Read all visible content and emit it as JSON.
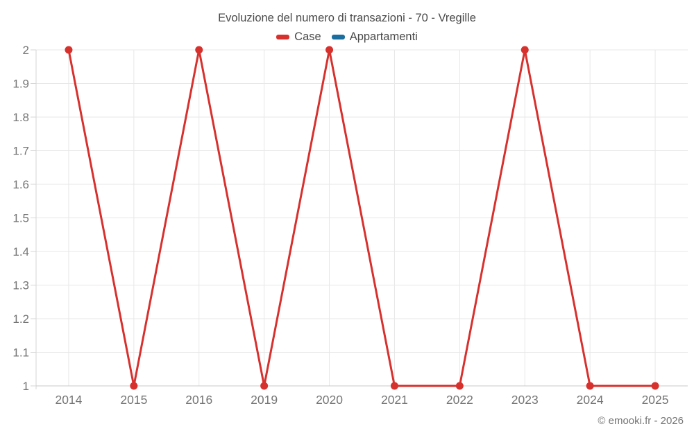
{
  "title": "Evoluzione del numero di transazioni - 70 - Vregille",
  "legend": {
    "items": [
      {
        "label": "Case",
        "color": "#d7312e"
      },
      {
        "label": "Appartamenti",
        "color": "#1a6fa0"
      }
    ]
  },
  "watermark": "© emooki.fr - 2026",
  "colors": {
    "grid": "#e7e7e7",
    "y_axis": "#d6d6d6",
    "x_axis": "#c9c9c9",
    "tick_label": "#757575",
    "title_text": "#4a4a4a",
    "watermark_text": "#757575",
    "background": "#ffffff"
  },
  "chart_data": {
    "type": "line",
    "title": "Evoluzione del numero di transazioni - 70 - Vregille",
    "categories": [
      "2014",
      "2015",
      "2016",
      "2019",
      "2020",
      "2021",
      "2022",
      "2023",
      "2024",
      "2025"
    ],
    "series": [
      {
        "name": "Case",
        "color": "#d7312e",
        "values": [
          2,
          1,
          2,
          1,
          2,
          1,
          1,
          2,
          1,
          1
        ]
      },
      {
        "name": "Appartamenti",
        "color": "#1a6fa0",
        "values": []
      }
    ],
    "xlabel": "",
    "ylabel": "",
    "ylim": [
      1,
      2
    ],
    "ytick_step": 0.1,
    "ytick_labels": [
      "1",
      "1.1",
      "1.2",
      "1.3",
      "1.4",
      "1.5",
      "1.6",
      "1.7",
      "1.8",
      "1.9",
      "2"
    ],
    "grid": true,
    "legend_position": "top",
    "marker": "circle"
  }
}
